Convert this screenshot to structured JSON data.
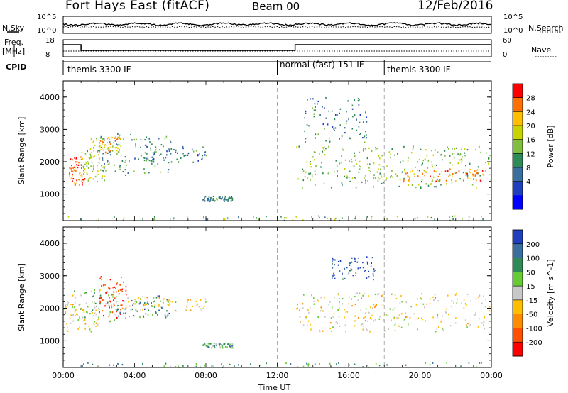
{
  "header": {
    "station": "Fort Hays East (fitACF)",
    "beam": "Beam 00",
    "date": "12/Feb/2016"
  },
  "summary_panels": {
    "nsky_label": "N.Sky",
    "nsearch_label": "N.Search",
    "nsky_ticks": [
      "10^5",
      "10^0"
    ],
    "nsearch_ticks": [
      "10^5",
      "10^0"
    ],
    "freq_label_1": "Freq.",
    "freq_label_2": "[MHz]",
    "freq_ticks": [
      "18",
      "8"
    ],
    "nave_label": "Nave",
    "nave_ticks": [
      "60",
      "0"
    ],
    "cpid_label": "CPID"
  },
  "cpid_segments": [
    {
      "label": "themis 3300 IF",
      "start_hour": 0,
      "end_hour": 12
    },
    {
      "label": "normal (fast) 151 IF",
      "start_hour": 12,
      "end_hour": 18
    },
    {
      "label": "themis 3300 IF",
      "start_hour": 18,
      "end_hour": 24
    }
  ],
  "chart_data": [
    {
      "type": "heatmap",
      "panel": "power",
      "ylabel": "Slant Range [km]",
      "ylim": [
        180,
        4500
      ],
      "yticks": [
        "4000",
        "3000",
        "2000",
        "1000"
      ],
      "ytick_values": [
        4000,
        3000,
        2000,
        1000
      ],
      "colorbar_label": "Power [dB]",
      "colorbar_ticks": [
        "28",
        "24",
        "20",
        "16",
        "12",
        "8",
        "4"
      ],
      "colorbar_colors": [
        "#ff0000",
        "#ff7000",
        "#ffbf00",
        "#c8d400",
        "#7fbf40",
        "#2e8b57",
        "#3a6e9e",
        "#1f3fbf",
        "#0000ff"
      ],
      "scatter_regions": [
        {
          "t0": 0.3,
          "t1": 1.2,
          "r0": 1300,
          "r1": 2200,
          "level": 0.9
        },
        {
          "t0": 1.0,
          "t1": 2.5,
          "r0": 1400,
          "r1": 2400,
          "level": 0.55
        },
        {
          "t0": 1.5,
          "t1": 3.2,
          "r0": 2300,
          "r1": 2800,
          "level": 0.7
        },
        {
          "t0": 2.0,
          "t1": 6.0,
          "r0": 1600,
          "r1": 2900,
          "level": 0.35
        },
        {
          "t0": 4.5,
          "t1": 8.0,
          "r0": 2000,
          "r1": 2500,
          "level": 0.3
        },
        {
          "t0": 7.8,
          "t1": 9.5,
          "r0": 800,
          "r1": 950,
          "level": 0.3
        },
        {
          "t0": 13.0,
          "t1": 24.0,
          "r0": 1200,
          "r1": 2500,
          "level": 0.5
        },
        {
          "t0": 19.0,
          "t1": 23.5,
          "r0": 1400,
          "r1": 1800,
          "level": 0.85
        },
        {
          "t0": 13.5,
          "t1": 17.0,
          "r0": 2600,
          "r1": 4000,
          "level": 0.3
        },
        {
          "t0": 0.0,
          "t1": 24.0,
          "r0": 200,
          "r1": 350,
          "level": 0.45
        }
      ]
    },
    {
      "type": "heatmap",
      "panel": "velocity",
      "ylabel": "Slant Range [km]",
      "xlabel": "Time UT",
      "ylim": [
        180,
        4500
      ],
      "yticks": [
        "4000",
        "3000",
        "2000",
        "1000"
      ],
      "ytick_values": [
        4000,
        3000,
        2000,
        1000
      ],
      "xticks": [
        "00:00",
        "04:00",
        "08:00",
        "12:00",
        "16:00",
        "20:00",
        "00:00"
      ],
      "xtick_hours": [
        0,
        4,
        8,
        12,
        16,
        20,
        24
      ],
      "colorbar_label": "Velocity [m s^-1]",
      "colorbar_ticks": [
        "200",
        "100",
        "50",
        "15",
        "-15",
        "-50",
        "-100",
        "-200"
      ],
      "colorbar_colors": [
        "#1f3fbf",
        "#3a6e9e",
        "#2e8b57",
        "#66cc33",
        "#c8c8c8",
        "#ffbf00",
        "#ff8c00",
        "#ff5000",
        "#ff0000"
      ],
      "scatter_regions": [
        {
          "t0": 0.0,
          "t1": 2.0,
          "r0": 1300,
          "r1": 2200,
          "level": 0.45
        },
        {
          "t0": 0.5,
          "t1": 3.0,
          "r0": 1600,
          "r1": 2600,
          "level": 0.6
        },
        {
          "t0": 2.0,
          "t1": 3.5,
          "r0": 1700,
          "r1": 3000,
          "level": 0.05
        },
        {
          "t0": 3.0,
          "t1": 6.0,
          "r0": 1700,
          "r1": 2400,
          "level": 0.8
        },
        {
          "t0": 3.5,
          "t1": 8.0,
          "r0": 1900,
          "r1": 2400,
          "level": 0.45
        },
        {
          "t0": 7.8,
          "t1": 9.5,
          "r0": 800,
          "r1": 950,
          "level": 0.7
        },
        {
          "t0": 13.0,
          "t1": 24.0,
          "r0": 1300,
          "r1": 2500,
          "level": 0.45
        },
        {
          "t0": 15.0,
          "t1": 17.5,
          "r0": 2900,
          "r1": 3600,
          "level": 0.95
        },
        {
          "t0": 0.0,
          "t1": 24.0,
          "r0": 200,
          "r1": 350,
          "level": 0.7
        }
      ]
    }
  ]
}
